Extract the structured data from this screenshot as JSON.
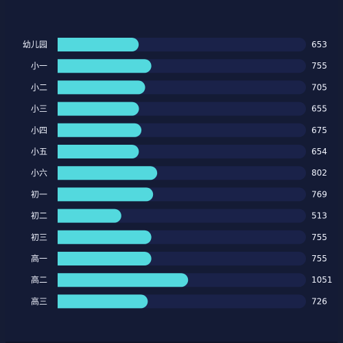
{
  "chart_data": {
    "type": "bar",
    "orientation": "horizontal",
    "categories": [
      "幼儿园",
      "小一",
      "小二",
      "小三",
      "小四",
      "小五",
      "小六",
      "初一",
      "初二",
      "初三",
      "高一",
      "高二",
      "高三"
    ],
    "values": [
      653,
      755,
      705,
      655,
      675,
      654,
      802,
      769,
      513,
      755,
      755,
      1051,
      726
    ],
    "value_labels": [
      "653",
      "755",
      "705",
      "655",
      "675",
      "654",
      "802",
      "769",
      "513",
      "755",
      "755",
      "1051",
      "726"
    ],
    "xlim": [
      0,
      2000
    ],
    "title": "",
    "xlabel": "",
    "ylabel": "",
    "grid": false,
    "legend": "none",
    "colors": {
      "background": "#141b35",
      "track": "#1a2249",
      "bar": "#53d9de",
      "text": "#f2f5ff"
    }
  }
}
